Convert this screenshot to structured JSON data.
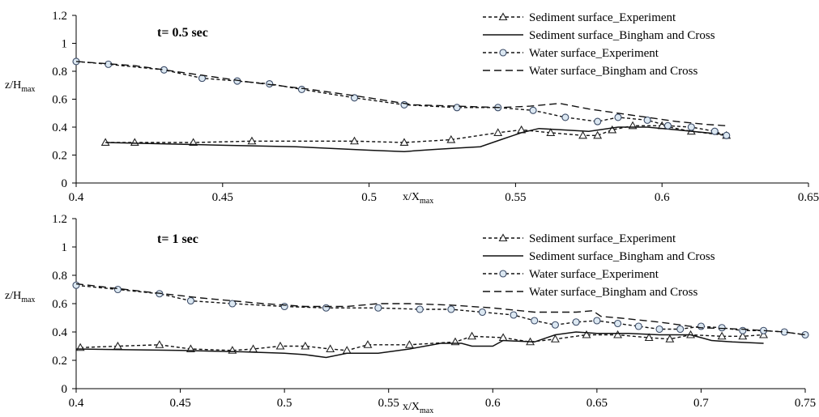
{
  "chart_data": [
    {
      "type": "line",
      "annotation": "t= 0.5 sec",
      "xlabel": "x/X",
      "xlabel_sub": "max",
      "ylabel": "z/H",
      "ylabel_sub": "max",
      "xlim": [
        0.4,
        0.65
      ],
      "ylim": [
        0,
        1.2
      ],
      "x_ticks": [
        "0.4",
        "0.45",
        "0.5",
        "0.55",
        "0.6",
        "0.65"
      ],
      "y_ticks": [
        "0",
        "0.2",
        "0.4",
        "0.6",
        "0.8",
        "1",
        "1.2"
      ],
      "grid": false,
      "legend_position": "top-right",
      "series": [
        {
          "name": "Sediment surface_Experiment",
          "style": "dashed-triangle",
          "x": [
            0.41,
            0.42,
            0.44,
            0.46,
            0.495,
            0.512,
            0.528,
            0.544,
            0.552,
            0.562,
            0.573,
            0.578,
            0.583,
            0.59,
            0.6,
            0.61,
            0.622
          ],
          "y": [
            0.29,
            0.29,
            0.29,
            0.3,
            0.3,
            0.29,
            0.31,
            0.36,
            0.38,
            0.36,
            0.34,
            0.34,
            0.38,
            0.41,
            0.41,
            0.37,
            0.34
          ]
        },
        {
          "name": "Sediment surface_Bingham and Cross",
          "style": "solid",
          "x": [
            0.41,
            0.45,
            0.475,
            0.5,
            0.512,
            0.522,
            0.53,
            0.538,
            0.545,
            0.552,
            0.558,
            0.566,
            0.575,
            0.585,
            0.595,
            0.605,
            0.615,
            0.62
          ],
          "y": [
            0.29,
            0.27,
            0.26,
            0.235,
            0.225,
            0.24,
            0.25,
            0.26,
            0.31,
            0.36,
            0.39,
            0.38,
            0.37,
            0.4,
            0.4,
            0.38,
            0.36,
            0.35
          ]
        },
        {
          "name": "Water surface_Experiment",
          "style": "dashed-circle",
          "x": [
            0.4,
            0.411,
            0.43,
            0.443,
            0.455,
            0.466,
            0.477,
            0.495,
            0.512,
            0.53,
            0.544,
            0.556,
            0.567,
            0.578,
            0.585,
            0.595,
            0.602,
            0.61,
            0.618,
            0.622
          ],
          "y": [
            0.87,
            0.85,
            0.81,
            0.75,
            0.73,
            0.71,
            0.67,
            0.61,
            0.56,
            0.54,
            0.54,
            0.52,
            0.47,
            0.44,
            0.47,
            0.45,
            0.41,
            0.4,
            0.37,
            0.34
          ]
        },
        {
          "name": "Water surface_Bingham and Cross",
          "style": "long-dash",
          "x": [
            0.4,
            0.42,
            0.44,
            0.46,
            0.48,
            0.5,
            0.515,
            0.53,
            0.545,
            0.555,
            0.565,
            0.575,
            0.585,
            0.595,
            0.605,
            0.615,
            0.622
          ],
          "y": [
            0.87,
            0.84,
            0.78,
            0.72,
            0.67,
            0.61,
            0.56,
            0.55,
            0.54,
            0.55,
            0.57,
            0.53,
            0.5,
            0.47,
            0.44,
            0.42,
            0.41
          ]
        }
      ]
    },
    {
      "type": "line",
      "annotation": "t= 1 sec",
      "xlabel": "x/X",
      "xlabel_sub": "max",
      "ylabel": "z/H",
      "ylabel_sub": "max",
      "xlim": [
        0.4,
        0.75
      ],
      "ylim": [
        0,
        1.2
      ],
      "x_ticks": [
        "0.4",
        "0.45",
        "0.5",
        "0.55",
        "0.6",
        "0.65",
        "0.7",
        "0.75"
      ],
      "y_ticks": [
        "0",
        "0.2",
        "0.4",
        "0.6",
        "0.8",
        "1",
        "1.2"
      ],
      "grid": false,
      "legend_position": "top-right",
      "series": [
        {
          "name": "Sediment surface_Experiment",
          "style": "dashed-triangle",
          "x": [
            0.402,
            0.42,
            0.44,
            0.455,
            0.475,
            0.485,
            0.498,
            0.51,
            0.522,
            0.53,
            0.54,
            0.56,
            0.582,
            0.59,
            0.605,
            0.618,
            0.63,
            0.645,
            0.66,
            0.675,
            0.685,
            0.695,
            0.71,
            0.72,
            0.73
          ],
          "y": [
            0.29,
            0.3,
            0.31,
            0.28,
            0.27,
            0.28,
            0.3,
            0.3,
            0.28,
            0.27,
            0.31,
            0.31,
            0.33,
            0.37,
            0.36,
            0.33,
            0.35,
            0.38,
            0.38,
            0.36,
            0.35,
            0.38,
            0.37,
            0.37,
            0.38
          ]
        },
        {
          "name": "Sediment surface_Bingham and Cross",
          "style": "solid",
          "x": [
            0.4,
            0.45,
            0.48,
            0.5,
            0.51,
            0.52,
            0.53,
            0.545,
            0.56,
            0.575,
            0.585,
            0.59,
            0.6,
            0.605,
            0.62,
            0.63,
            0.64,
            0.65,
            0.665,
            0.68,
            0.695,
            0.705,
            0.715,
            0.73
          ],
          "y": [
            0.28,
            0.27,
            0.26,
            0.25,
            0.24,
            0.22,
            0.25,
            0.25,
            0.28,
            0.32,
            0.32,
            0.3,
            0.3,
            0.34,
            0.33,
            0.38,
            0.4,
            0.39,
            0.39,
            0.38,
            0.38,
            0.34,
            0.33,
            0.32
          ]
        },
        {
          "name": "Water surface_Experiment",
          "style": "dashed-circle",
          "x": [
            0.4,
            0.42,
            0.44,
            0.455,
            0.475,
            0.5,
            0.52,
            0.545,
            0.565,
            0.58,
            0.595,
            0.61,
            0.62,
            0.63,
            0.64,
            0.65,
            0.66,
            0.67,
            0.68,
            0.69,
            0.7,
            0.71,
            0.72,
            0.73,
            0.74,
            0.75
          ],
          "y": [
            0.73,
            0.7,
            0.67,
            0.62,
            0.6,
            0.58,
            0.57,
            0.57,
            0.56,
            0.56,
            0.54,
            0.52,
            0.48,
            0.45,
            0.47,
            0.48,
            0.46,
            0.44,
            0.42,
            0.42,
            0.44,
            0.43,
            0.41,
            0.41,
            0.4,
            0.38
          ]
        },
        {
          "name": "Water surface_Bingham and Cross",
          "style": "long-dash",
          "x": [
            0.4,
            0.43,
            0.46,
            0.49,
            0.51,
            0.53,
            0.545,
            0.56,
            0.58,
            0.6,
            0.62,
            0.64,
            0.648,
            0.652,
            0.66,
            0.68,
            0.7,
            0.72,
            0.74,
            0.75
          ],
          "y": [
            0.74,
            0.69,
            0.64,
            0.6,
            0.58,
            0.58,
            0.6,
            0.6,
            0.59,
            0.57,
            0.54,
            0.54,
            0.55,
            0.51,
            0.5,
            0.47,
            0.43,
            0.42,
            0.4,
            0.38
          ]
        }
      ]
    }
  ]
}
